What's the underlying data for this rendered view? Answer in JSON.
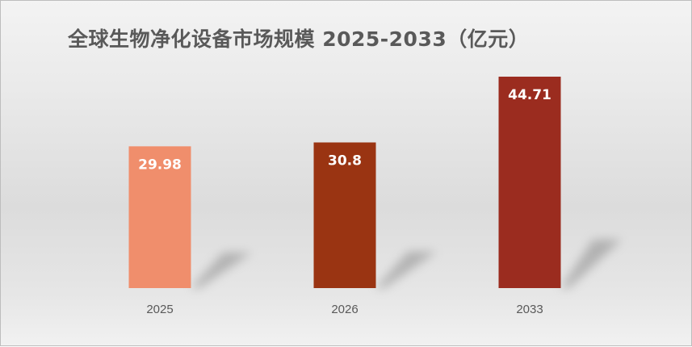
{
  "chart_data": {
    "type": "bar",
    "title": "全球生物净化设备市场规模 2025-2033（亿元）",
    "categories": [
      "2025",
      "2026",
      "2033"
    ],
    "values": [
      29.98,
      30.8,
      44.71
    ],
    "data_labels": [
      "29.98",
      "30.8",
      "44.71"
    ],
    "colors": [
      "#F08E6C",
      "#9A3412",
      "#9B2C1F"
    ],
    "xlabel": "",
    "ylabel": "",
    "ylim": [
      0,
      50
    ],
    "grid": false,
    "legend": "none"
  }
}
